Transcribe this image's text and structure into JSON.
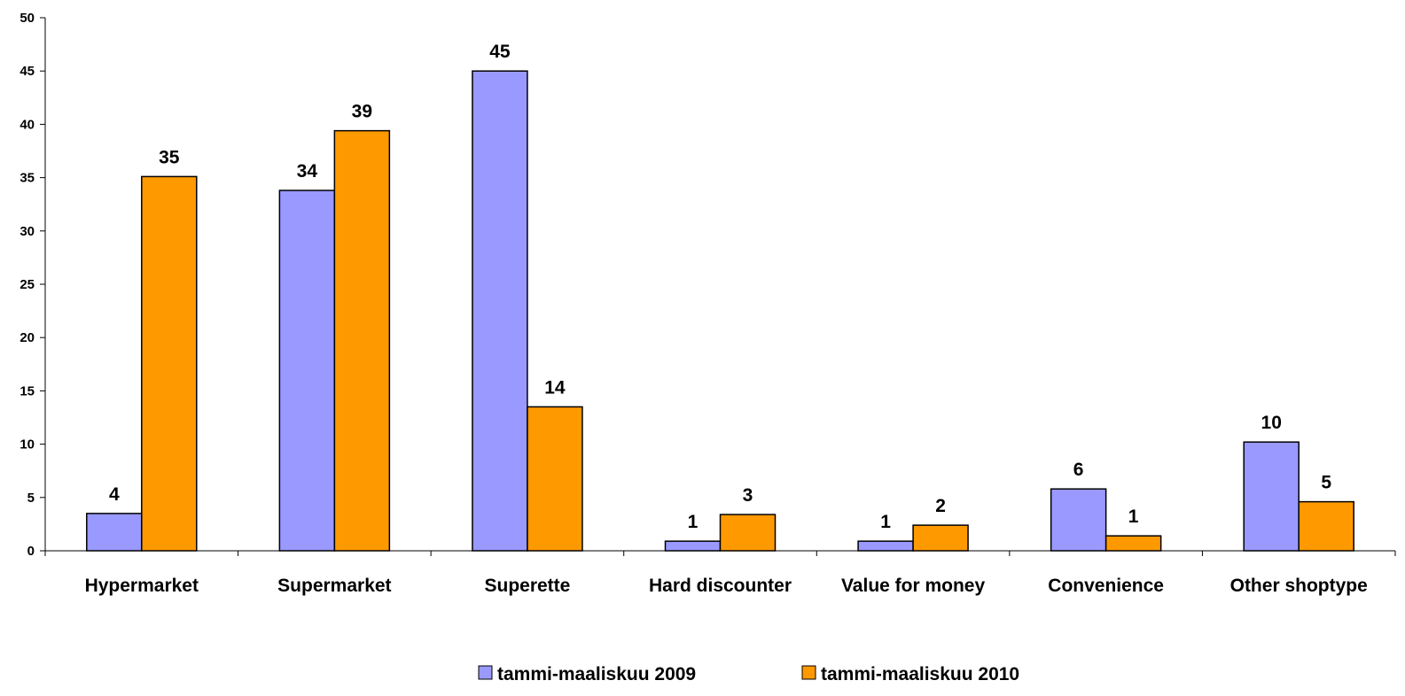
{
  "chart_data": {
    "type": "bar",
    "categories": [
      "Hypermarket",
      "Supermarket",
      "Superette",
      "Hard discounter",
      "Value for money",
      "Convenience",
      "Other shoptype"
    ],
    "series": [
      {
        "name": "tammi-maaliskuu 2009",
        "color": "#9999FF",
        "values": [
          3.5,
          33.8,
          45.0,
          0.9,
          0.9,
          5.8,
          10.2
        ],
        "labels": [
          "4",
          "34",
          "45",
          "1",
          "1",
          "6",
          "10"
        ]
      },
      {
        "name": "tammi-maaliskuu 2010",
        "color": "#FF9900",
        "values": [
          35.1,
          39.4,
          13.5,
          3.4,
          2.4,
          1.4,
          4.6
        ],
        "labels": [
          "35",
          "39",
          "14",
          "3",
          "2",
          "1",
          "5"
        ]
      }
    ],
    "yticks": [
      "0",
      "5",
      "10",
      "15",
      "20",
      "25",
      "30",
      "35",
      "40",
      "45",
      "50"
    ],
    "ylim": [
      0,
      50
    ],
    "title": "",
    "xlabel": "",
    "ylabel": "",
    "grid": false,
    "legend_position": "bottom"
  }
}
